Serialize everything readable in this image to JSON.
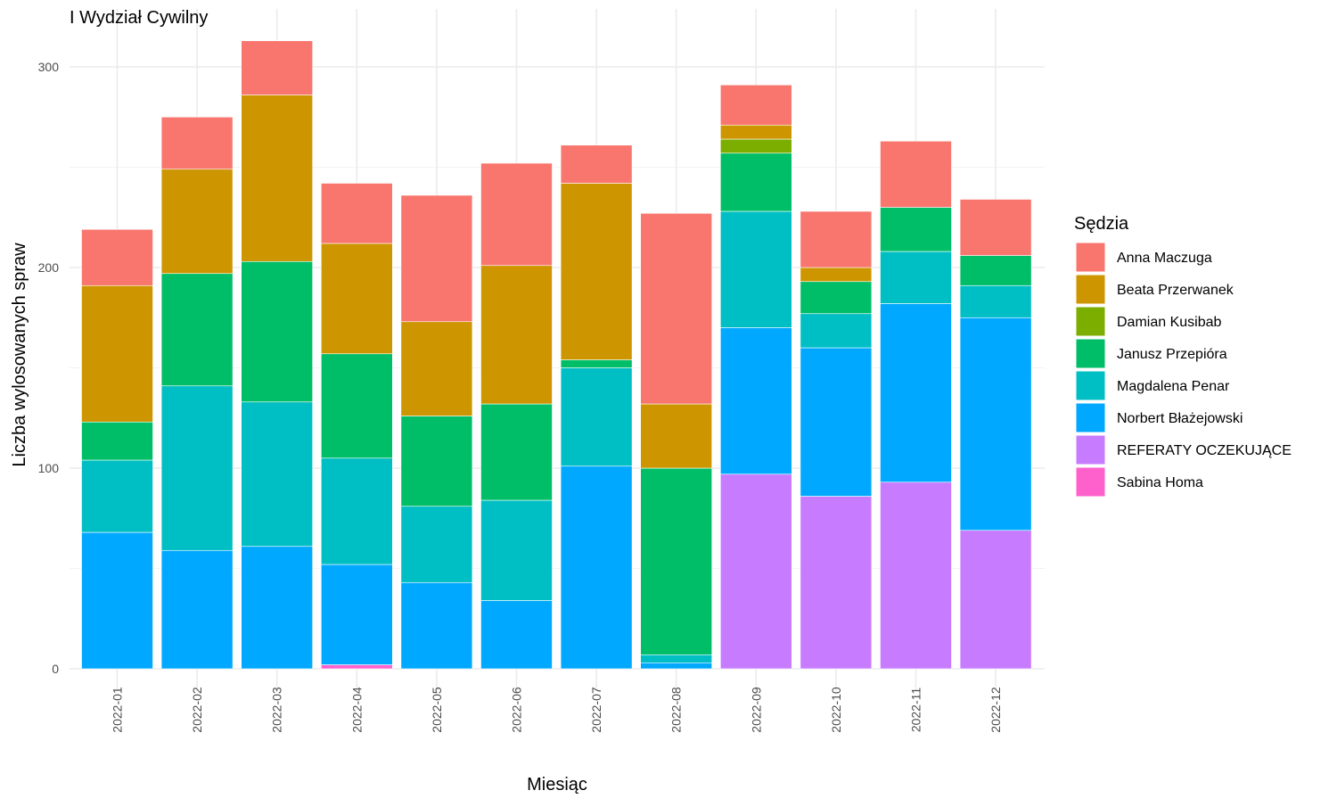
{
  "chart_data": {
    "type": "bar",
    "stacked": true,
    "title": "I Wydział Cywilny",
    "xlabel": "Miesiąc",
    "ylabel": "Liczba wylosowanych spraw",
    "ylim": [
      0,
      320
    ],
    "yticks": [
      0,
      100,
      200,
      300
    ],
    "grid": true,
    "legend_title": "Sędzia",
    "legend_position": "right",
    "categories": [
      "2022-01",
      "2022-02",
      "2022-03",
      "2022-04",
      "2022-05",
      "2022-06",
      "2022-07",
      "2022-08",
      "2022-09",
      "2022-10",
      "2022-11",
      "2022-12"
    ],
    "series": [
      {
        "name": "Sabina Homa",
        "color": "#FF61CC",
        "values": [
          0,
          0,
          0,
          2,
          0,
          0,
          0,
          0,
          0,
          0,
          0,
          0
        ]
      },
      {
        "name": "REFERATY OCZEKUJĄCE",
        "color": "#C77CFF",
        "values": [
          0,
          0,
          0,
          0,
          0,
          0,
          0,
          0,
          97,
          86,
          93,
          69
        ]
      },
      {
        "name": "Norbert Błażejowski",
        "color": "#00A9FF",
        "values": [
          68,
          59,
          61,
          50,
          43,
          34,
          101,
          3,
          73,
          74,
          89,
          106
        ]
      },
      {
        "name": "Magdalena Penar",
        "color": "#00BFC4",
        "values": [
          36,
          82,
          72,
          53,
          38,
          50,
          49,
          4,
          58,
          17,
          26,
          16
        ]
      },
      {
        "name": "Janusz Przepióra",
        "color": "#00BE67",
        "values": [
          19,
          56,
          70,
          52,
          45,
          48,
          4,
          93,
          29,
          16,
          22,
          15
        ]
      },
      {
        "name": "Damian Kusibab",
        "color": "#7CAE00",
        "values": [
          0,
          0,
          0,
          0,
          0,
          0,
          0,
          0,
          7,
          0,
          0,
          0
        ]
      },
      {
        "name": "Beata Przerwanek",
        "color": "#CD9600",
        "values": [
          68,
          52,
          83,
          55,
          47,
          69,
          88,
          32,
          7,
          7,
          0,
          0
        ]
      },
      {
        "name": "Anna Maczuga",
        "color": "#F8766D",
        "values": [
          28,
          26,
          27,
          30,
          63,
          51,
          19,
          95,
          20,
          28,
          33,
          28
        ]
      }
    ],
    "legend_order": [
      "Anna Maczuga",
      "Beata Przerwanek",
      "Damian Kusibab",
      "Janusz Przepióra",
      "Magdalena Penar",
      "Norbert Błażejowski",
      "REFERATY OCZEKUJĄCE",
      "Sabina Homa"
    ]
  }
}
